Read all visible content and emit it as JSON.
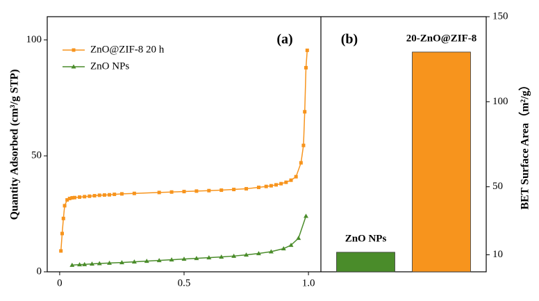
{
  "chart_data": [
    {
      "type": "line",
      "panel_label": "(a)",
      "y_label": "Quantity Adsorbed (cm³/g STP)",
      "xlim": [
        -0.05,
        1.05
      ],
      "xticks": [
        0,
        0.5,
        {
          "value": 1,
          "label": "1.0"
        }
      ],
      "ylim": [
        0,
        110
      ],
      "yticks": [
        0,
        50,
        100
      ],
      "legend": "upper left",
      "series": [
        {
          "name": "ZnO@ZIF-8 20 h",
          "color": "#f7941d",
          "marker": "square",
          "x": [
            0.005,
            0.01,
            0.015,
            0.02,
            0.03,
            0.04,
            0.05,
            0.06,
            0.08,
            0.1,
            0.12,
            0.14,
            0.16,
            0.18,
            0.2,
            0.22,
            0.25,
            0.3,
            0.4,
            0.45,
            0.5,
            0.55,
            0.6,
            0.65,
            0.7,
            0.75,
            0.8,
            0.83,
            0.85,
            0.87,
            0.89,
            0.91,
            0.93,
            0.95,
            0.97,
            0.98,
            0.985,
            0.99,
            0.995
          ],
          "values": [
            9,
            16.5,
            23,
            28.5,
            31,
            31.6,
            31.9,
            32,
            32.2,
            32.4,
            32.6,
            32.8,
            33,
            33.1,
            33.2,
            33.4,
            33.6,
            33.8,
            34.2,
            34.4,
            34.6,
            34.8,
            35,
            35.2,
            35.5,
            35.8,
            36.4,
            36.8,
            37.1,
            37.5,
            38,
            38.6,
            39.5,
            41,
            47,
            54.5,
            69,
            88,
            95.5
          ]
        },
        {
          "name": "ZnO NPs",
          "color": "#4a8c2a",
          "marker": "triangle",
          "x": [
            0.05,
            0.08,
            0.1,
            0.13,
            0.16,
            0.2,
            0.25,
            0.3,
            0.35,
            0.4,
            0.45,
            0.5,
            0.55,
            0.6,
            0.65,
            0.7,
            0.75,
            0.8,
            0.85,
            0.9,
            0.93,
            0.96,
            0.99
          ],
          "values": [
            2.9,
            3.1,
            3.2,
            3.4,
            3.6,
            3.8,
            4.0,
            4.3,
            4.6,
            4.9,
            5.2,
            5.5,
            5.8,
            6.1,
            6.4,
            6.8,
            7.3,
            7.9,
            8.7,
            10,
            11.5,
            14.5,
            24
          ]
        }
      ]
    },
    {
      "type": "bar",
      "panel_label": "(b)",
      "y_label": "BET Surface Area（m²/g）",
      "y_axis_side": "right",
      "ylim": [
        0,
        150
      ],
      "yticks": [
        10,
        50,
        100,
        150
      ],
      "categories": [
        "ZnO NPs",
        "20-ZnO@ZIF-8"
      ],
      "values": [
        11.5,
        129.2
      ],
      "colors": [
        "#4a8c2a",
        "#f7941d"
      ]
    }
  ]
}
